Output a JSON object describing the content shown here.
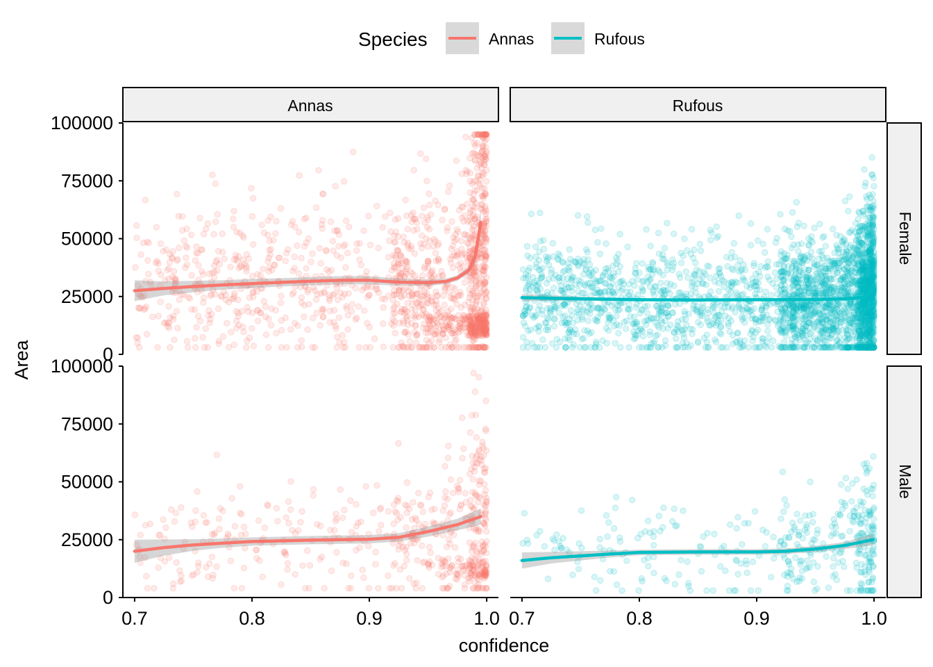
{
  "legend": {
    "title": "Species",
    "items": [
      {
        "label": "Annas",
        "color": "#F8766D"
      },
      {
        "label": "Rufous",
        "color": "#00BFC4"
      }
    ],
    "position": "top"
  },
  "axes": {
    "xlabel": "confidence",
    "ylabel": "Area"
  },
  "facets": {
    "columns": [
      "Annas",
      "Rufous"
    ],
    "rows": [
      "Female",
      "Male"
    ]
  },
  "chart_data": {
    "type": "scatter",
    "subtype": "faceted scatter with loess smooth and confidence band",
    "xlim": [
      0.69,
      1.01
    ],
    "ylim": [
      0,
      100000
    ],
    "x_ticks": [
      "0.7",
      "0.8",
      "0.9",
      "1.0"
    ],
    "y_ticks": [
      "0",
      "25000",
      "50000",
      "75000",
      "100000"
    ],
    "grid": false,
    "point_alpha": 0.15,
    "panels": [
      {
        "species": "Annas",
        "sex": "Female",
        "color": "#F8766D",
        "smooth": {
          "x": [
            0.7,
            0.725,
            0.75,
            0.775,
            0.8,
            0.825,
            0.85,
            0.875,
            0.9,
            0.925,
            0.95,
            0.965,
            0.975,
            0.985,
            0.99,
            0.995
          ],
          "y": [
            27500,
            28500,
            29300,
            30000,
            30600,
            31100,
            31600,
            32000,
            32000,
            31200,
            31000,
            31500,
            33000,
            36500,
            42000,
            57000
          ],
          "band": [
            4500,
            3000,
            2500,
            2000,
            2000,
            1800,
            1800,
            1800,
            1800,
            1500,
            1300,
            1200,
            1200,
            1500,
            2500,
            6000
          ]
        },
        "points": {
          "n": 1500,
          "density": "increasing toward 1.0",
          "range_y": [
            3000,
            95000
          ]
        }
      },
      {
        "species": "Rufous",
        "sex": "Female",
        "color": "#00BFC4",
        "smooth": {
          "x": [
            0.7,
            0.75,
            0.8,
            0.85,
            0.9,
            0.95,
            0.975,
            0.99,
            0.995,
            0.999
          ],
          "y": [
            24500,
            24000,
            23600,
            23500,
            23600,
            23700,
            24000,
            24600,
            26000,
            29000
          ],
          "band": [
            1500,
            800,
            600,
            600,
            600,
            500,
            500,
            600,
            900,
            1800
          ]
        },
        "points": {
          "n": 2800,
          "density": "increasing toward 1.0",
          "range_y": [
            3000,
            97000
          ]
        }
      },
      {
        "species": "Annas",
        "sex": "Male",
        "color": "#F8766D",
        "smooth": {
          "x": [
            0.7,
            0.725,
            0.75,
            0.775,
            0.8,
            0.825,
            0.85,
            0.875,
            0.9,
            0.925,
            0.95,
            0.975,
            0.995
          ],
          "y": [
            20000,
            21600,
            22700,
            23500,
            24200,
            24500,
            24800,
            25000,
            25200,
            26000,
            28500,
            31500,
            35000
          ],
          "band": [
            5000,
            3500,
            2500,
            2000,
            1800,
            1800,
            1800,
            1800,
            1800,
            1800,
            2200,
            2500,
            3500
          ]
        },
        "points": {
          "n": 550,
          "density": "increasing toward 1.0",
          "range_y": [
            4000,
            97000
          ]
        }
      },
      {
        "species": "Rufous",
        "sex": "Male",
        "color": "#00BFC4",
        "smooth": {
          "x": [
            0.7,
            0.725,
            0.75,
            0.775,
            0.8,
            0.85,
            0.9,
            0.925,
            0.95,
            0.975,
            0.999
          ],
          "y": [
            16000,
            17200,
            18000,
            18800,
            19500,
            19700,
            19700,
            20000,
            21000,
            22500,
            25000
          ],
          "band": [
            3500,
            2500,
            2000,
            1500,
            1200,
            1200,
            1200,
            1200,
            1300,
            1500,
            2500
          ]
        },
        "points": {
          "n": 380,
          "density": "increasing toward 1.0",
          "range_y": [
            3000,
            61000
          ]
        }
      }
    ]
  }
}
